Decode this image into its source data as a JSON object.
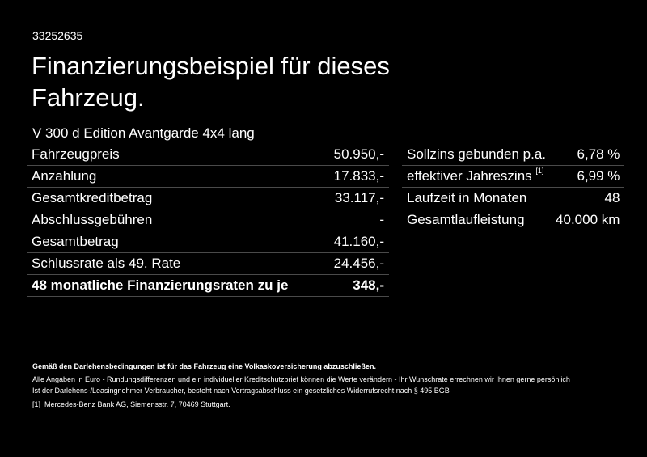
{
  "id": "33252635",
  "title": "Finanzierungsbeispiel für dieses Fahrzeug.",
  "model": "V 300 d Edition Avantgarde 4x4 lang",
  "left_rows": [
    {
      "label": "Fahrzeugpreis",
      "value": "50.950,-"
    },
    {
      "label": "Anzahlung",
      "value": "17.833,-"
    },
    {
      "label": "Gesamtkreditbetrag",
      "value": "33.117,-"
    },
    {
      "label": "Abschlussgebühren",
      "value": "-"
    },
    {
      "label": "Gesamtbetrag",
      "value": "41.160,-"
    },
    {
      "label": "Schlussrate als 49. Rate",
      "value": "24.456,-"
    },
    {
      "label": "48 monatliche Finanzierungsraten zu je",
      "value": "348,-"
    }
  ],
  "right_rows": [
    {
      "label": "Sollzins gebunden p.a.",
      "value": "6,78 %"
    },
    {
      "label": "effektiver Jahreszins",
      "sup": "[1]",
      "value": "6,99 %"
    },
    {
      "label": "Laufzeit in Monaten",
      "value": "48"
    },
    {
      "label": "Gesamtlaufleistung",
      "value": "40.000 km"
    }
  ],
  "footer": {
    "note_bold": "Gemäß den Darlehensbedingungen ist für das Fahrzeug eine Volkaskoversicherung abzuschließen.",
    "note1": "Alle Angaben in Euro - Rundungsdifferenzen und ein individueller Kreditschutzbrief können die Werte verändern - Ihr Wunschrate errechnen wir Ihnen gerne persönlich",
    "note2": "Ist der Darlehens-/Leasingnehmer Verbraucher, besteht nach Vertragsabschluss ein gesetzliches Widerrufsrecht nach § 495 BGB",
    "ref_mark": "[1]",
    "ref_text": "Mercedes-Benz Bank AG, Siemensstr. 7, 70469 Stuttgart."
  }
}
